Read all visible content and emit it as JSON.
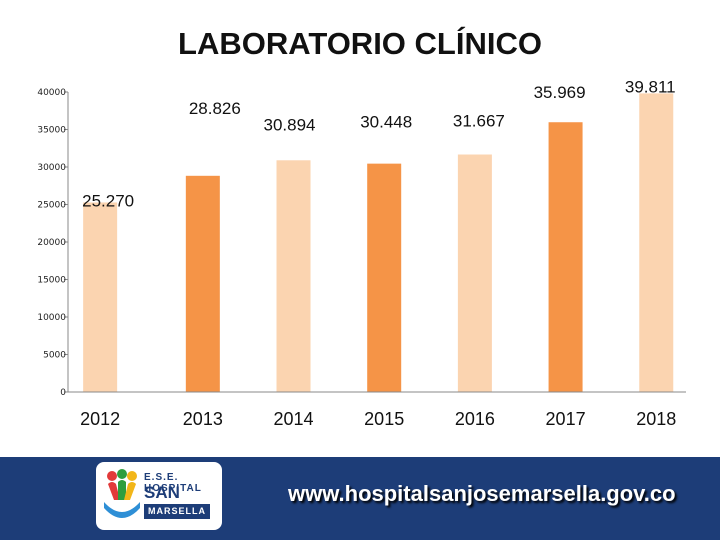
{
  "chart_data": {
    "type": "bar",
    "title": "LABORATORIO CLÍNICO",
    "categories": [
      "2012",
      "2013",
      "2014",
      "2015",
      "2016",
      "2017",
      "2018"
    ],
    "values": [
      25270,
      28826,
      30894,
      30448,
      31667,
      35969,
      39811
    ],
    "data_labels": [
      "25.270",
      "28.826",
      "30.894",
      "30.448",
      "31.667",
      "35.969",
      "39.811"
    ],
    "y_ticks": [
      "0",
      "5000",
      "10000",
      "15000",
      "20000",
      "25000",
      "30000",
      "35000",
      "40000"
    ],
    "ylim": [
      0,
      40000
    ],
    "xlabel": "",
    "ylabel": "",
    "grid": false,
    "bar_colors": [
      "#fbd4b0",
      "#f59447",
      "#fbd4b0",
      "#f59447",
      "#fbd4b0",
      "#f59447",
      "#fbd4b0"
    ]
  },
  "footer": {
    "website": "www.hospitalsanjosemarsella.gov.co",
    "background_color": "#1d3d78",
    "logo": {
      "line1": "E.S.E. HOSPITAL",
      "line2": "SAN JOSE",
      "line3": "MARSELLA"
    }
  }
}
